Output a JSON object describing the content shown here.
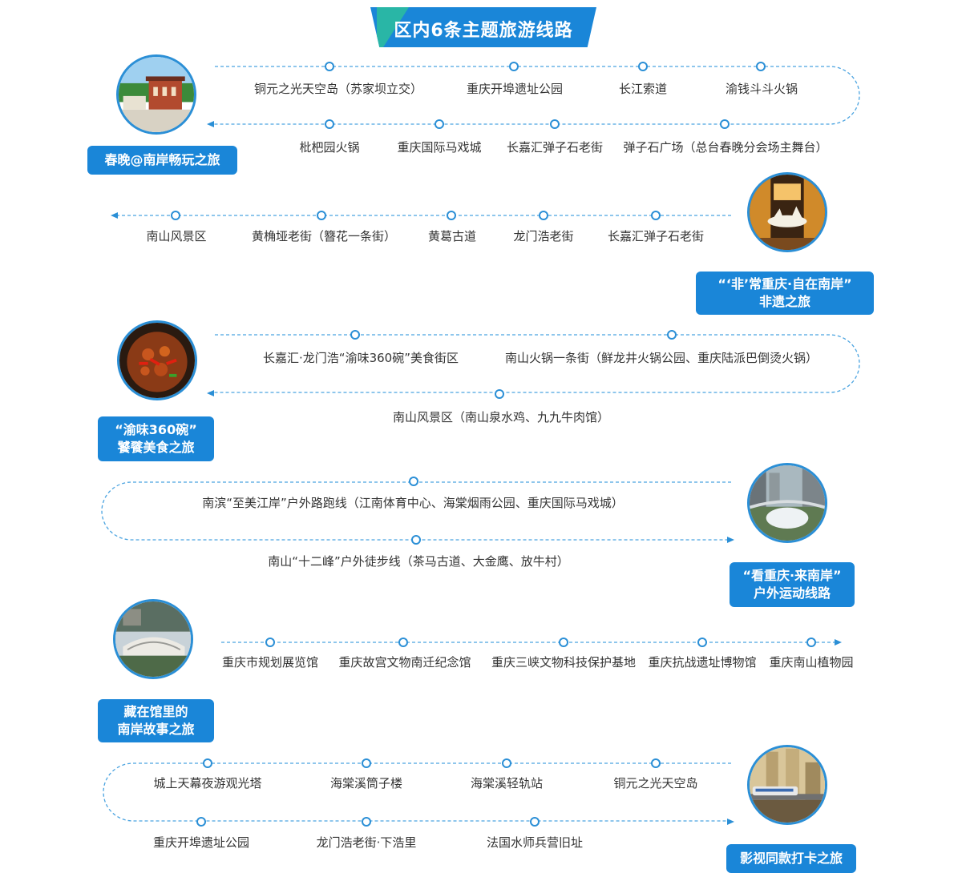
{
  "banner": {
    "title": "区内6条主题旅游线路"
  },
  "routes": [
    {
      "tag_lines": [
        "春晚@南岸畅玩之旅"
      ],
      "photo_icon": "old-building-photo-icon",
      "stops_top": [
        "铜元之光天空岛（苏家坝立交）",
        "重庆开埠遗址公园",
        "长江索道",
        "渝钱斗斗火锅"
      ],
      "stops_bottom": [
        "枇杷园火锅",
        "重庆国际马戏城",
        "长嘉汇弹子石老街",
        "弹子石广场（总台春晚分会场主舞台）"
      ]
    },
    {
      "tag_lines": [
        "“‘非’常重庆·自在南岸”",
        "非遗之旅"
      ],
      "photo_icon": "deer-lantern-photo-icon",
      "stops": [
        "南山风景区",
        "黄桷垭老街（簪花一条街）",
        "黄葛古道",
        "龙门浩老街",
        "长嘉汇弹子石老街"
      ]
    },
    {
      "tag_lines": [
        "“渝味360碗”",
        "饕餮美食之旅"
      ],
      "photo_icon": "spicy-chicken-photo-icon",
      "stops_top": [
        "长嘉汇·龙门浩“渝味360碗”美食街区",
        "南山火锅一条街（鲜龙井火锅公园、重庆陆派巴倒烫火锅）"
      ],
      "stops_bottom": [
        "南山风景区（南山泉水鸡、九九牛肉馆）"
      ]
    },
    {
      "tag_lines": [
        "“看重庆·来南岸”",
        "户外运动线路"
      ],
      "photo_icon": "stadium-photo-icon",
      "stops_top": [
        "南滨“至美江岸”户外路跑线（江南体育中心、海棠烟雨公园、重庆国际马戏城）"
      ],
      "stops_bottom": [
        "南山“十二峰”户外徒步线（茶马古道、大金鹰、放牛村）"
      ]
    },
    {
      "tag_lines": [
        "藏在馆里的",
        "南岸故事之旅"
      ],
      "photo_icon": "museum-photo-icon",
      "stops": [
        "重庆市规划展览馆",
        "重庆故宫文物南迁纪念馆",
        "重庆三峡文物科技保护基地",
        "重庆抗战遗址博物馆",
        "重庆南山植物园"
      ]
    },
    {
      "tag_lines": [
        "影视同款打卡之旅"
      ],
      "photo_icon": "monorail-skyline-photo-icon",
      "stops_top": [
        "城上天幕夜游观光塔",
        "海棠溪筒子楼",
        "海棠溪轻轨站",
        "铜元之光天空岛"
      ],
      "stops_bottom": [
        "重庆开埠遗址公园",
        "龙门浩老街·下浩里",
        "法国水师兵营旧址"
      ]
    }
  ],
  "colors": {
    "accent": "#1a86d8",
    "line": "#4aa3e0",
    "teal": "#29b6a6"
  }
}
